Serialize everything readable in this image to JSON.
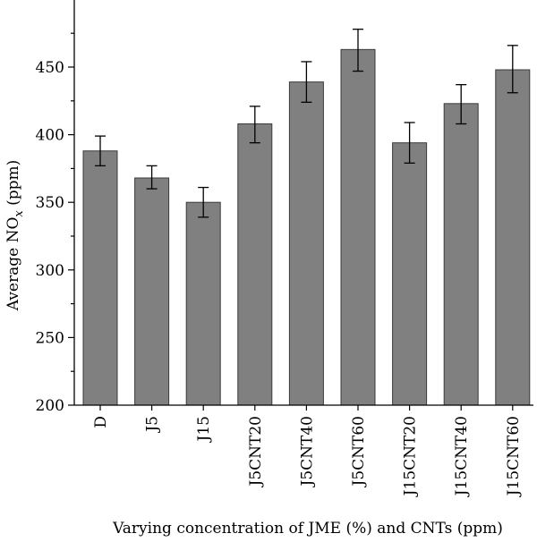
{
  "chart_data": {
    "type": "bar",
    "categories": [
      "D",
      "J5",
      "J15",
      "J5CNT20",
      "J5CNT40",
      "J5CNT60",
      "J15CNT20",
      "J15CNT40",
      "J15CNT60"
    ],
    "values": [
      388,
      368,
      350,
      408,
      439,
      463,
      394,
      423,
      448
    ],
    "error_low": [
      377,
      360,
      339,
      394,
      424,
      447,
      379,
      408,
      431
    ],
    "error_high": [
      399,
      377,
      361,
      421,
      454,
      478,
      409,
      437,
      466
    ],
    "xlabel": "Varying concentration of JME (%) and CNTs (ppm)",
    "ylabel_prefix": "Average NO",
    "ylabel_subscript": "x",
    "ylabel_suffix": " (ppm)",
    "ylim": [
      200,
      480
    ],
    "yticks": [
      200,
      250,
      300,
      350,
      400,
      450
    ],
    "grid": false,
    "bar_color": "#808080"
  }
}
